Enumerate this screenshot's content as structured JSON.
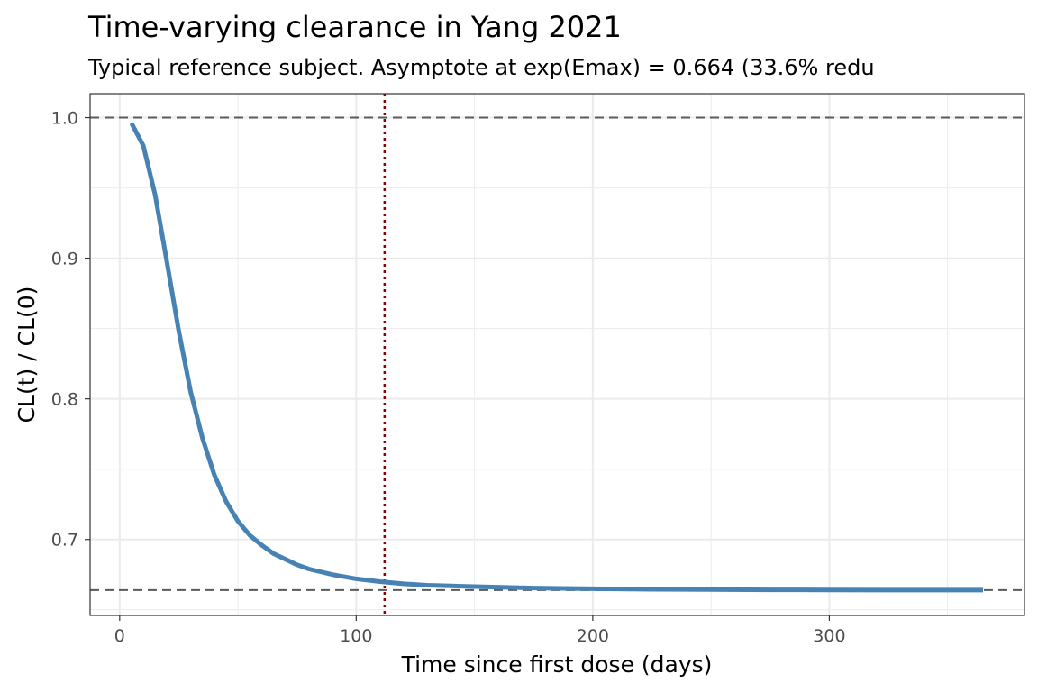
{
  "chart_data": {
    "type": "line",
    "title": "Time-varying clearance in Yang 2021",
    "subtitle": "Typical reference subject. Asymptote at exp(Emax) = 0.664 (33.6% redu",
    "xlabel": "Time since first dose (days)",
    "ylabel": "CL(t) / CL(0)",
    "xlim": [
      -12.5,
      382.5
    ],
    "ylim": [
      0.646,
      1.017
    ],
    "x_ticks": [
      0,
      100,
      200,
      300
    ],
    "x_tick_labels": [
      "0",
      "100",
      "200",
      "300"
    ],
    "y_ticks": [
      0.7,
      0.8,
      0.9,
      1.0
    ],
    "y_tick_labels": [
      "0.7",
      "0.8",
      "0.9",
      "1.0"
    ],
    "x_minor_ticks": [
      50,
      150,
      250,
      350
    ],
    "y_minor_ticks": [
      0.65,
      0.75,
      0.85,
      0.95
    ],
    "grid": true,
    "series": [
      {
        "color": "#4682b4",
        "x": [
          5,
          10,
          15,
          20,
          25,
          30,
          35,
          40,
          45,
          50,
          55,
          60,
          65,
          70,
          75,
          80,
          85,
          90,
          95,
          100,
          110,
          120,
          130,
          140,
          150,
          175,
          200,
          225,
          250,
          275,
          300,
          325,
          350,
          365
        ],
        "y": [
          0.996,
          0.98,
          0.945,
          0.897,
          0.848,
          0.805,
          0.772,
          0.746,
          0.727,
          0.713,
          0.703,
          0.696,
          0.69,
          0.686,
          0.682,
          0.679,
          0.677,
          0.675,
          0.6735,
          0.672,
          0.67,
          0.6685,
          0.6675,
          0.667,
          0.6665,
          0.6655,
          0.665,
          0.6646,
          0.6644,
          0.6642,
          0.6641,
          0.664,
          0.664,
          0.664
        ]
      }
    ],
    "reference_lines": [
      {
        "orientation": "horizontal",
        "value": 1.0,
        "style": "dashed",
        "color": "#595959"
      },
      {
        "orientation": "horizontal",
        "value": 0.664,
        "style": "dashed",
        "color": "#595959"
      },
      {
        "orientation": "vertical",
        "value": 112,
        "style": "dotted",
        "color": "#8b0000"
      }
    ]
  }
}
